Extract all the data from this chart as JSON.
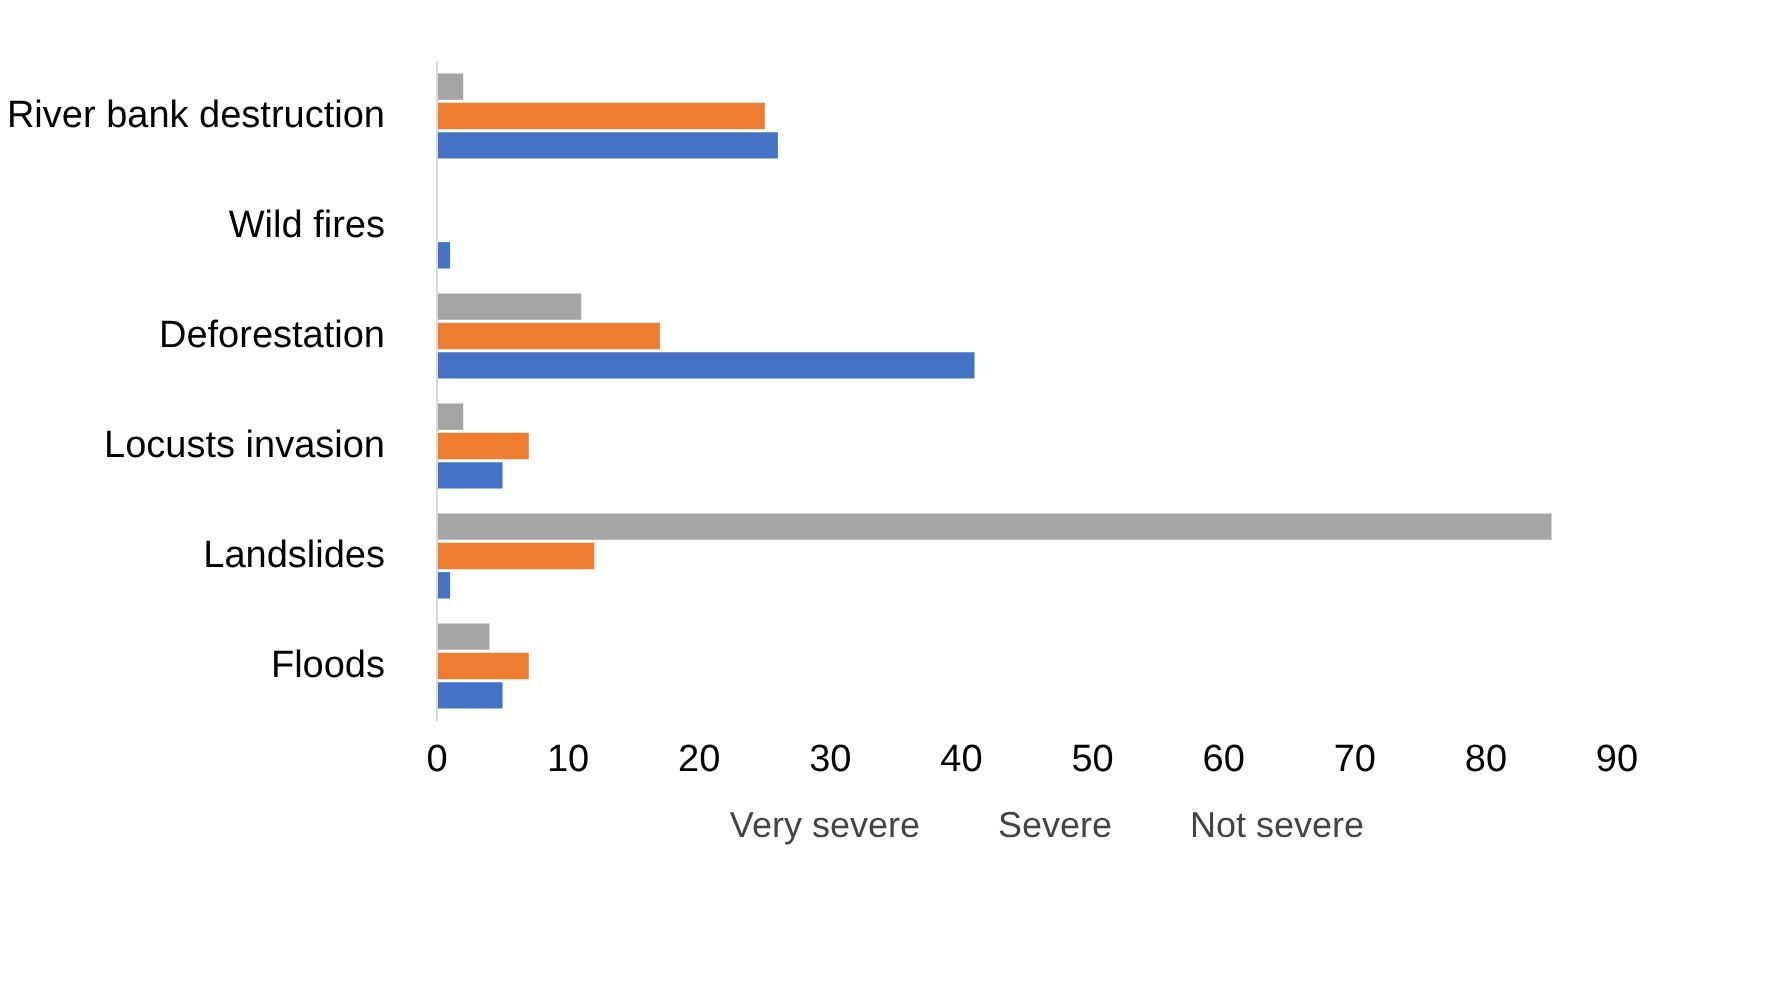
{
  "chart_data": {
    "type": "bar",
    "orientation": "horizontal",
    "categories": [
      "River bank destruction",
      "Wild fires",
      "Deforestation",
      "Locusts invasion",
      "Landslides",
      "Floods"
    ],
    "series": [
      {
        "name": "Very severe",
        "color": "#a5a5a5",
        "values": [
          2,
          0,
          11,
          2,
          85,
          4
        ]
      },
      {
        "name": "Severe",
        "color": "#ed7d31",
        "values": [
          25,
          0,
          17,
          7,
          12,
          7
        ]
      },
      {
        "name": "Not severe",
        "color": "#4472c4",
        "values": [
          26,
          1,
          41,
          5,
          1,
          5
        ]
      }
    ],
    "xlim": [
      0,
      90
    ],
    "xticks": [
      0,
      10,
      20,
      30,
      40,
      50,
      60,
      70,
      80,
      90
    ],
    "grid": false,
    "legend": "bottom"
  }
}
